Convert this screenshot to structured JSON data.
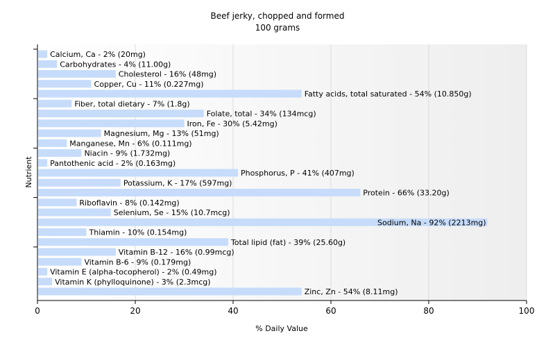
{
  "chart_data": {
    "type": "bar",
    "orientation": "horizontal",
    "title": "Beef jerky, chopped and formed",
    "subtitle": "100 grams",
    "xlabel": "% Daily Value",
    "ylabel": "Nutrient",
    "xlim": [
      0,
      100
    ],
    "xticks": [
      0,
      20,
      40,
      60,
      80,
      100
    ],
    "grid": true,
    "bar_color": "#c6dcfa",
    "bars": [
      {
        "name": "Calcium, Ca",
        "value": 2,
        "label": "Calcium, Ca - 2% (20mg)"
      },
      {
        "name": "Carbohydrates",
        "value": 4,
        "label": "Carbohydrates - 4% (11.00g)"
      },
      {
        "name": "Cholesterol",
        "value": 16,
        "label": "Cholesterol - 16% (48mg)"
      },
      {
        "name": "Copper, Cu",
        "value": 11,
        "label": "Copper, Cu - 11% (0.227mg)"
      },
      {
        "name": "Fatty acids, total saturated",
        "value": 54,
        "label": "Fatty acids, total saturated - 54% (10.850g)"
      },
      {
        "name": "Fiber, total dietary",
        "value": 7,
        "label": "Fiber, total dietary - 7% (1.8g)"
      },
      {
        "name": "Folate, total",
        "value": 34,
        "label": "Folate, total - 34% (134mcg)"
      },
      {
        "name": "Iron, Fe",
        "value": 30,
        "label": "Iron, Fe - 30% (5.42mg)"
      },
      {
        "name": "Magnesium, Mg",
        "value": 13,
        "label": "Magnesium, Mg - 13% (51mg)"
      },
      {
        "name": "Manganese, Mn",
        "value": 6,
        "label": "Manganese, Mn - 6% (0.111mg)"
      },
      {
        "name": "Niacin",
        "value": 9,
        "label": "Niacin - 9% (1.732mg)"
      },
      {
        "name": "Pantothenic acid",
        "value": 2,
        "label": "Pantothenic acid - 2% (0.163mg)"
      },
      {
        "name": "Phosphorus, P",
        "value": 41,
        "label": "Phosphorus, P - 41% (407mg)"
      },
      {
        "name": "Potassium, K",
        "value": 17,
        "label": "Potassium, K - 17% (597mg)"
      },
      {
        "name": "Protein",
        "value": 66,
        "label": "Protein - 66% (33.20g)"
      },
      {
        "name": "Riboflavin",
        "value": 8,
        "label": "Riboflavin - 8% (0.142mg)"
      },
      {
        "name": "Selenium, Se",
        "value": 15,
        "label": "Selenium, Se - 15% (10.7mcg)"
      },
      {
        "name": "Sodium, Na",
        "value": 92,
        "label": "Sodium, Na - 92% (2213mg)"
      },
      {
        "name": "Thiamin",
        "value": 10,
        "label": "Thiamin - 10% (0.154mg)"
      },
      {
        "name": "Total lipid (fat)",
        "value": 39,
        "label": "Total lipid (fat) - 39% (25.60g)"
      },
      {
        "name": "Vitamin B-12",
        "value": 16,
        "label": "Vitamin B-12 - 16% (0.99mcg)"
      },
      {
        "name": "Vitamin B-6",
        "value": 9,
        "label": "Vitamin B-6 - 9% (0.179mg)"
      },
      {
        "name": "Vitamin E (alpha-tocopherol)",
        "value": 2,
        "label": "Vitamin E (alpha-tocopherol) - 2% (0.49mg)"
      },
      {
        "name": "Vitamin K (phylloquinone)",
        "value": 3,
        "label": "Vitamin K (phylloquinone) - 3% (2.3mcg)"
      },
      {
        "name": "Zinc, Zn",
        "value": 54,
        "label": "Zinc, Zn - 54% (8.11mg)"
      }
    ]
  }
}
